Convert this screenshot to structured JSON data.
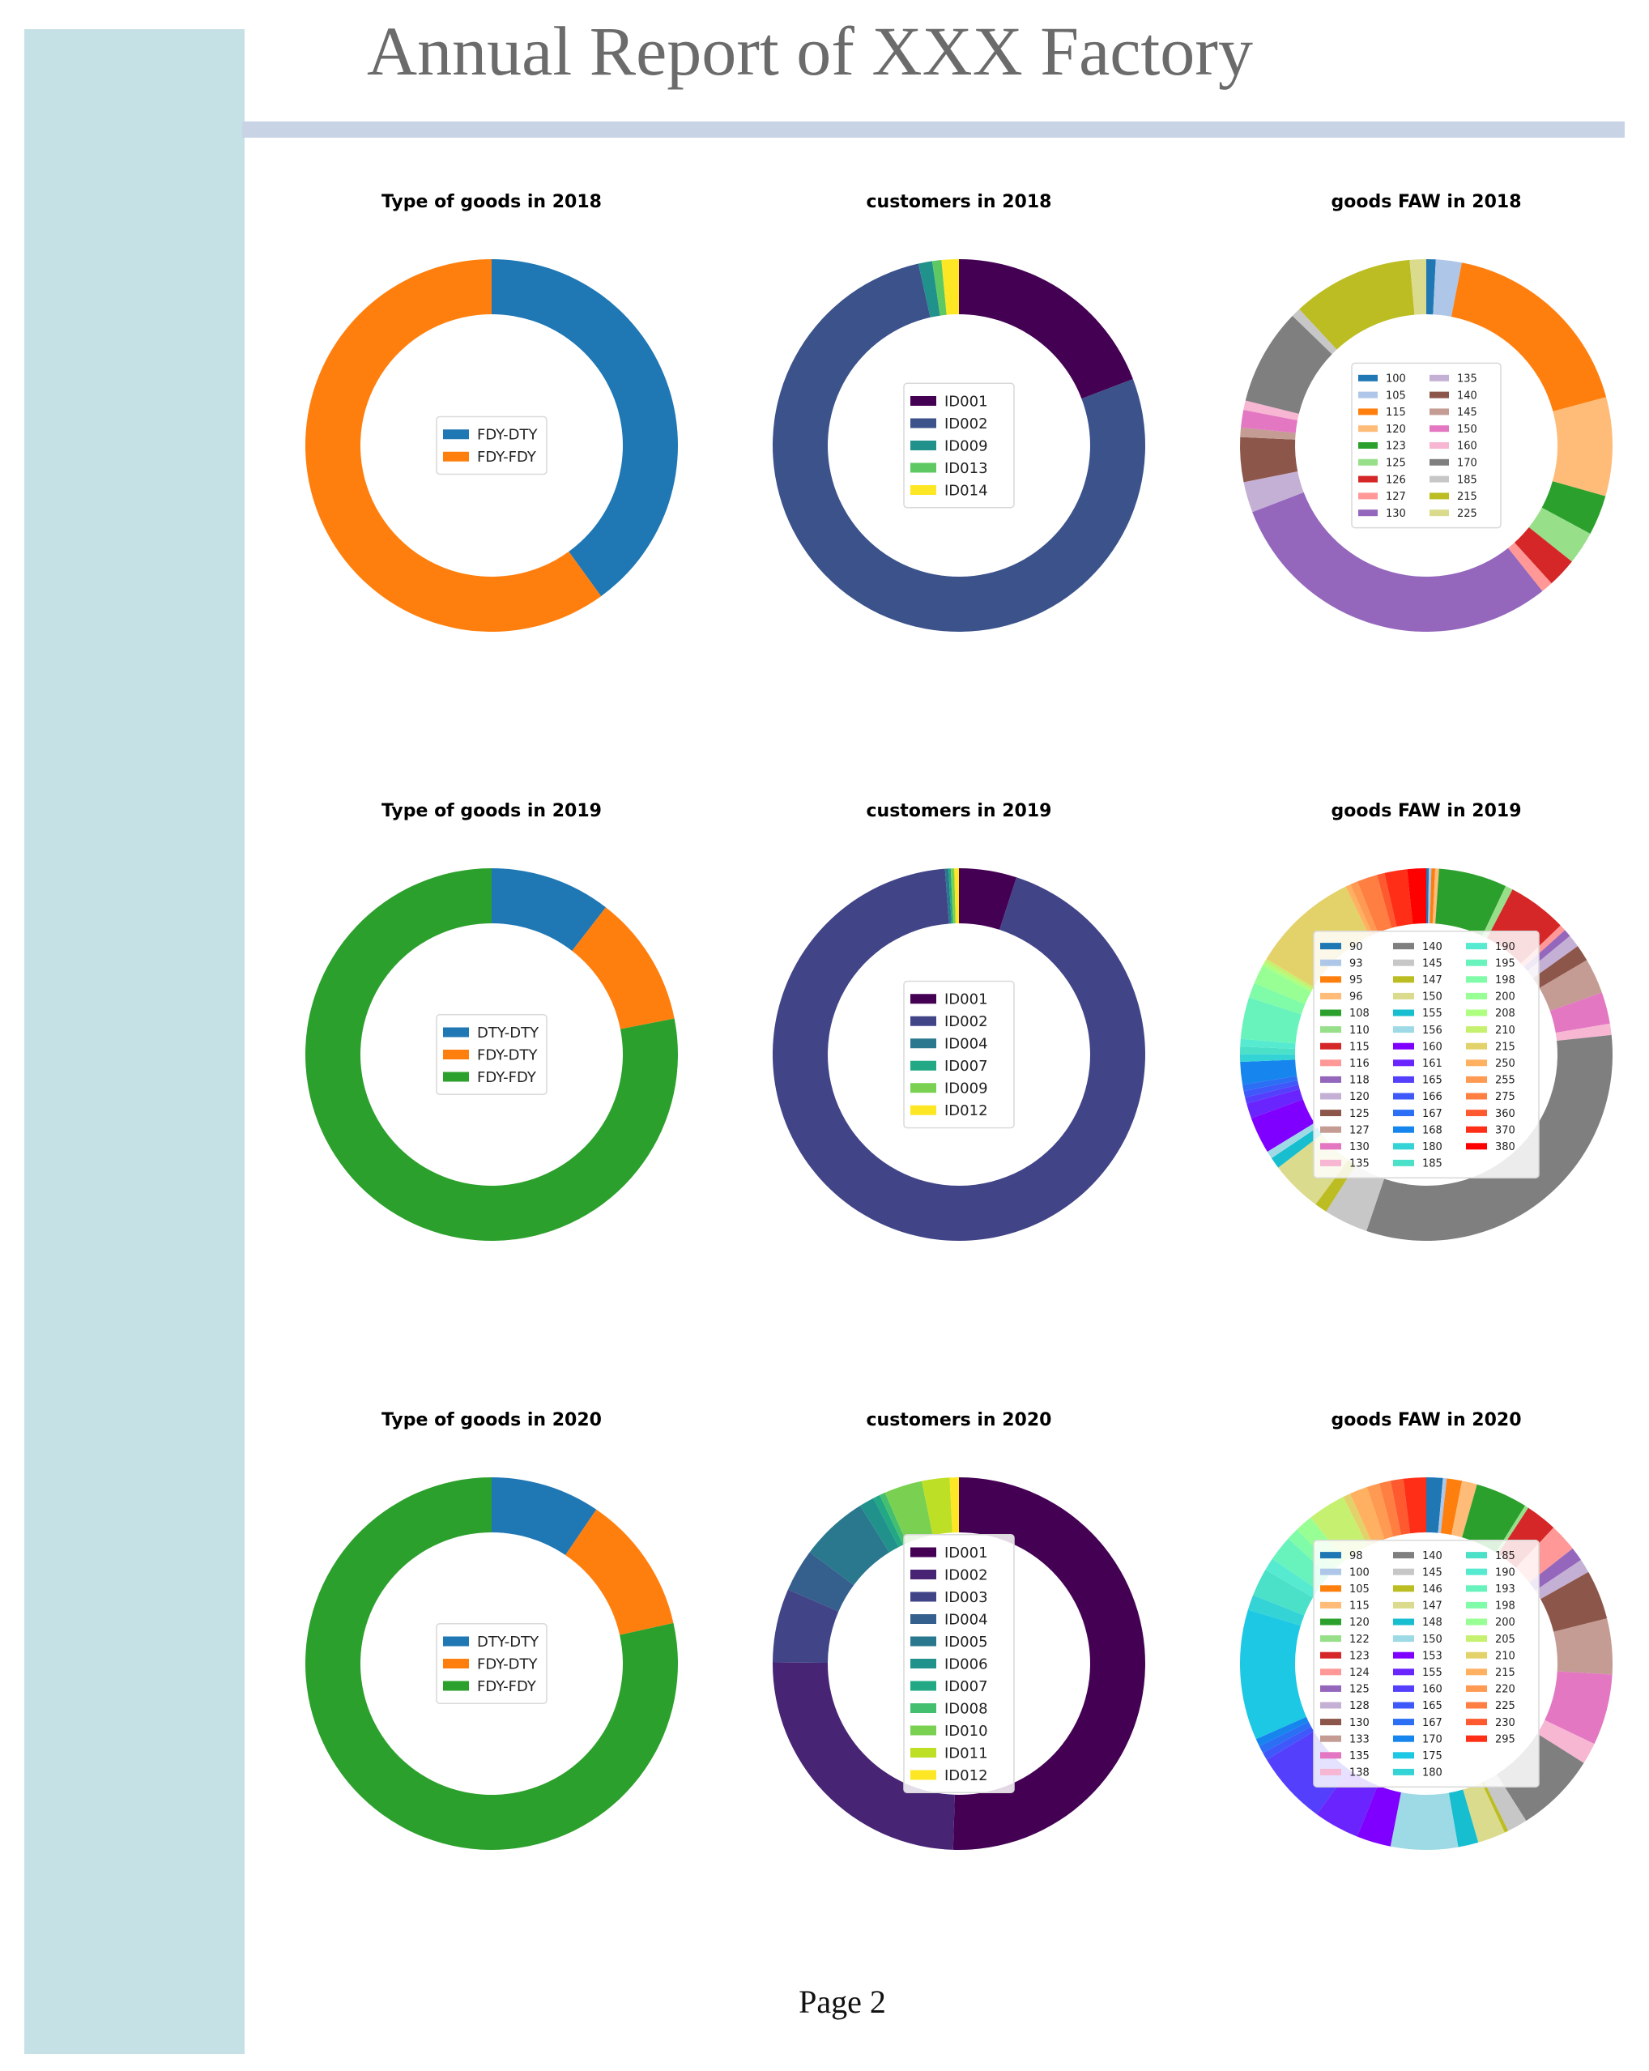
{
  "page": {
    "title": "Annual Report of XXX Factory",
    "footer": "Page 2"
  },
  "chart_data": [
    {
      "type": "pie",
      "title": "Type of goods in 2018",
      "legend_columns": 1,
      "labels": [
        "FDY-DTY",
        "FDY-FDY"
      ],
      "values": [
        40,
        60
      ],
      "colors": [
        "#1f77b4",
        "#ff7f0e"
      ]
    },
    {
      "type": "pie",
      "title": "customers in 2018",
      "legend_columns": 1,
      "labels": [
        "ID001",
        "ID002",
        "ID009",
        "ID013",
        "ID014"
      ],
      "values": [
        19.2,
        77.3,
        1.2,
        0.8,
        1.5
      ],
      "colors": [
        "#440154",
        "#3b528b",
        "#21918c",
        "#5ec962",
        "#fde725"
      ]
    },
    {
      "type": "pie",
      "title": "goods FAW in 2018",
      "legend_columns": 2,
      "labels": [
        "100",
        "105",
        "115",
        "120",
        "123",
        "125",
        "126",
        "127",
        "130",
        "135",
        "140",
        "145",
        "150",
        "160",
        "170",
        "185",
        "215",
        "225"
      ],
      "values": [
        0.8,
        2.2,
        17.4,
        8.4,
        3.4,
        2.8,
        2.5,
        1.0,
        29.3,
        2.6,
        3.8,
        0.8,
        1.5,
        0.8,
        8.2,
        0.8,
        10.3,
        1.4
      ],
      "colors": [
        "#1f77b4",
        "#aec7e8",
        "#ff7f0e",
        "#ffbb78",
        "#2ca02c",
        "#98df8a",
        "#d62728",
        "#ff9896",
        "#9467bd",
        "#c5b0d5",
        "#8c564b",
        "#c49c94",
        "#e377c2",
        "#f7b6d2",
        "#7f7f7f",
        "#c7c7c7",
        "#bcbd22",
        "#dbdb8d"
      ]
    },
    {
      "type": "pie",
      "title": "Type of goods in 2019",
      "legend_columns": 1,
      "labels": [
        "DTY-DTY",
        "FDY-DTY",
        "FDY-FDY"
      ],
      "values": [
        10.5,
        11.4,
        78.1
      ],
      "colors": [
        "#1f77b4",
        "#ff7f0e",
        "#2ca02c"
      ]
    },
    {
      "type": "pie",
      "title": "customers in 2019",
      "legend_columns": 1,
      "labels": [
        "ID001",
        "ID002",
        "ID004",
        "ID007",
        "ID009",
        "ID012"
      ],
      "values": [
        5.0,
        93.8,
        0.3,
        0.2,
        0.3,
        0.4
      ],
      "colors": [
        "#440154",
        "#414487",
        "#2a788e",
        "#22a884",
        "#7ad151",
        "#fde725"
      ]
    },
    {
      "type": "pie",
      "title": "goods FAW in 2019",
      "legend_columns": 3,
      "labels": [
        "90",
        "93",
        "95",
        "96",
        "108",
        "110",
        "115",
        "116",
        "118",
        "120",
        "125",
        "127",
        "130",
        "135",
        "140",
        "145",
        "147",
        "150",
        "155",
        "156",
        "160",
        "161",
        "165",
        "166",
        "167",
        "168",
        "180",
        "185",
        "190",
        "195",
        "198",
        "200",
        "208",
        "210",
        "215",
        "250",
        "255",
        "275",
        "360",
        "370",
        "380"
      ],
      "values": [
        0.2,
        0.2,
        0.3,
        0.3,
        5.4,
        0.6,
        4.7,
        0.5,
        0.6,
        1.0,
        1.3,
        2.8,
        2.5,
        0.9,
        29.1,
        3.5,
        1.0,
        4.1,
        0.9,
        0.6,
        2.9,
        1.2,
        0.5,
        0.5,
        0.5,
        1.8,
        0.6,
        0.6,
        0.6,
        3.3,
        1.2,
        1.5,
        0.3,
        0.3,
        8.5,
        0.4,
        0.6,
        1.6,
        0.6,
        1.8,
        1.5
      ],
      "colors": [
        "#1f77b4",
        "#aec7e8",
        "#ff7f0e",
        "#ffbb78",
        "#2ca02c",
        "#98df8a",
        "#d62728",
        "#ff9896",
        "#9467bd",
        "#c5b0d5",
        "#8c564b",
        "#c49c94",
        "#e377c2",
        "#f7b6d2",
        "#7f7f7f",
        "#c7c7c7",
        "#bcbd22",
        "#dbdb8d",
        "#17becf",
        "#9edae5",
        "#8000ff",
        "#6a24fe",
        "#543ffd",
        "#3e58f9",
        "#2a6ff4",
        "#1685ed",
        "#34d3d6",
        "#4be0c8",
        "#56ead1",
        "#68f3bc",
        "#80fba8",
        "#97ff93",
        "#aeff80",
        "#c6f170",
        "#e3d26a",
        "#ffb060",
        "#ff9a53",
        "#ff7f43",
        "#ff5a2f",
        "#ff2f17",
        "#ff0000"
      ]
    },
    {
      "type": "pie",
      "title": "Type of goods in 2020",
      "legend_columns": 1,
      "labels": [
        "DTY-DTY",
        "FDY-DTY",
        "FDY-FDY"
      ],
      "values": [
        9.5,
        12.0,
        78.5
      ],
      "colors": [
        "#1f77b4",
        "#ff7f0e",
        "#2ca02c"
      ]
    },
    {
      "type": "pie",
      "title": "customers in 2020",
      "legend_columns": 1,
      "labels": [
        "ID001",
        "ID002",
        "ID003",
        "ID004",
        "ID005",
        "ID006",
        "ID007",
        "ID008",
        "ID010",
        "ID011",
        "ID012"
      ],
      "values": [
        50.5,
        24.6,
        6.4,
        3.7,
        5.9,
        1.3,
        0.6,
        0.5,
        3.3,
        2.4,
        0.8
      ],
      "colors": [
        "#440154",
        "#482475",
        "#414487",
        "#355f8d",
        "#2a788e",
        "#21918c",
        "#22a884",
        "#44bf70",
        "#7ad151",
        "#bddf26",
        "#fde725"
      ]
    },
    {
      "type": "pie",
      "title": "goods FAW in 2020",
      "legend_columns": 3,
      "labels": [
        "98",
        "100",
        "105",
        "115",
        "120",
        "122",
        "123",
        "124",
        "125",
        "128",
        "130",
        "133",
        "135",
        "138",
        "140",
        "145",
        "146",
        "147",
        "148",
        "150",
        "153",
        "155",
        "160",
        "165",
        "167",
        "170",
        "175",
        "180",
        "185",
        "190",
        "193",
        "198",
        "200",
        "205",
        "210",
        "215",
        "220",
        "225",
        "230",
        "295"
      ],
      "values": [
        1.3,
        0.3,
        1.2,
        1.2,
        4.1,
        0.3,
        2.5,
        2.2,
        1.1,
        1.1,
        3.9,
        4.4,
        5.6,
        1.7,
        6.4,
        1.6,
        0.3,
        2.2,
        1.6,
        5.3,
        2.7,
        3.6,
        5.8,
        0.6,
        0.6,
        0.6,
        10.3,
        1.2,
        2.2,
        1.0,
        2.0,
        1.0,
        1.4,
        3.0,
        0.6,
        1.4,
        1.0,
        0.9,
        1.0,
        1.8
      ],
      "colors": [
        "#1f77b4",
        "#aec7e8",
        "#ff7f0e",
        "#ffbb78",
        "#2ca02c",
        "#98df8a",
        "#d62728",
        "#ff9896",
        "#9467bd",
        "#c5b0d5",
        "#8c564b",
        "#c49c94",
        "#e377c2",
        "#f7b6d2",
        "#7f7f7f",
        "#c7c7c7",
        "#bcbd22",
        "#dbdb8d",
        "#17becf",
        "#9edae5",
        "#8000ff",
        "#6a24fe",
        "#543ffd",
        "#3e58f9",
        "#2a6ff4",
        "#1685ed",
        "#1cc8e3",
        "#34d3d6",
        "#4be0c8",
        "#56ead1",
        "#68f3bc",
        "#80fba8",
        "#97ff93",
        "#c6f170",
        "#e3d26a",
        "#ffb060",
        "#ff9a53",
        "#ff7f43",
        "#ff5a2f",
        "#ff2f17"
      ]
    }
  ]
}
